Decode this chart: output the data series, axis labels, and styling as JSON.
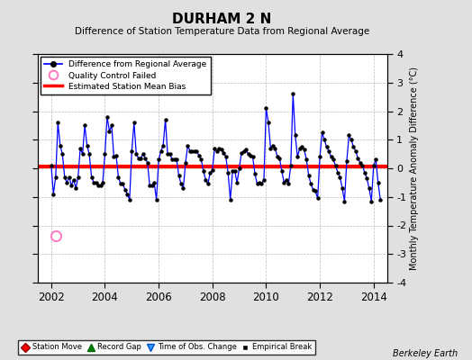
{
  "title": "DURHAM 2 N",
  "subtitle": "Difference of Station Temperature Data from Regional Average",
  "ylabel_right": "Monthly Temperature Anomaly Difference (°C)",
  "ylim": [
    -4,
    4
  ],
  "xlim": [
    2001.5,
    2014.5
  ],
  "xticks": [
    2002,
    2004,
    2006,
    2008,
    2010,
    2012,
    2014
  ],
  "yticks": [
    -4,
    -3,
    -2,
    -1,
    0,
    1,
    2,
    3,
    4
  ],
  "bias_line_y": 0.05,
  "background_color": "#e0e0e0",
  "plot_bg_color": "#ffffff",
  "line_color": "#0000ff",
  "bias_color": "#ff0000",
  "qc_failed_x": 2002.17,
  "qc_failed_y": -2.35,
  "watermark": "Berkeley Earth",
  "time_series": {
    "x": [
      2002.0,
      2002.083,
      2002.167,
      2002.25,
      2002.333,
      2002.417,
      2002.5,
      2002.583,
      2002.667,
      2002.75,
      2002.833,
      2002.917,
      2003.0,
      2003.083,
      2003.167,
      2003.25,
      2003.333,
      2003.417,
      2003.5,
      2003.583,
      2003.667,
      2003.75,
      2003.833,
      2003.917,
      2004.0,
      2004.083,
      2004.167,
      2004.25,
      2004.333,
      2004.417,
      2004.5,
      2004.583,
      2004.667,
      2004.75,
      2004.833,
      2004.917,
      2005.0,
      2005.083,
      2005.167,
      2005.25,
      2005.333,
      2005.417,
      2005.5,
      2005.583,
      2005.667,
      2005.75,
      2005.833,
      2005.917,
      2006.0,
      2006.083,
      2006.167,
      2006.25,
      2006.333,
      2006.417,
      2006.5,
      2006.583,
      2006.667,
      2006.75,
      2006.833,
      2006.917,
      2007.0,
      2007.083,
      2007.167,
      2007.25,
      2007.333,
      2007.417,
      2007.5,
      2007.583,
      2007.667,
      2007.75,
      2007.833,
      2007.917,
      2008.0,
      2008.083,
      2008.167,
      2008.25,
      2008.333,
      2008.417,
      2008.5,
      2008.583,
      2008.667,
      2008.75,
      2008.833,
      2008.917,
      2009.0,
      2009.083,
      2009.167,
      2009.25,
      2009.333,
      2009.417,
      2009.5,
      2009.583,
      2009.667,
      2009.75,
      2009.833,
      2009.917,
      2010.0,
      2010.083,
      2010.167,
      2010.25,
      2010.333,
      2010.417,
      2010.5,
      2010.583,
      2010.667,
      2010.75,
      2010.833,
      2010.917,
      2011.0,
      2011.083,
      2011.167,
      2011.25,
      2011.333,
      2011.417,
      2011.5,
      2011.583,
      2011.667,
      2011.75,
      2011.833,
      2011.917,
      2012.0,
      2012.083,
      2012.167,
      2012.25,
      2012.333,
      2012.417,
      2012.5,
      2012.583,
      2012.667,
      2012.75,
      2012.833,
      2012.917,
      2013.0,
      2013.083,
      2013.167,
      2013.25,
      2013.333,
      2013.417,
      2013.5,
      2013.583,
      2013.667,
      2013.75,
      2013.833,
      2013.917,
      2014.0,
      2014.083,
      2014.167,
      2014.25
    ],
    "y": [
      0.1,
      -0.9,
      -0.3,
      1.6,
      0.8,
      0.5,
      -0.3,
      -0.5,
      -0.3,
      -0.6,
      -0.4,
      -0.7,
      -0.3,
      0.7,
      0.5,
      1.5,
      0.8,
      0.5,
      -0.3,
      -0.5,
      -0.5,
      -0.6,
      -0.6,
      -0.5,
      0.5,
      1.8,
      1.3,
      1.5,
      0.4,
      0.45,
      -0.3,
      -0.55,
      -0.55,
      -0.75,
      -0.9,
      -1.1,
      0.6,
      1.6,
      0.5,
      0.35,
      0.35,
      0.5,
      0.35,
      0.2,
      -0.6,
      -0.6,
      -0.5,
      -1.1,
      0.3,
      0.6,
      0.8,
      1.7,
      0.5,
      0.5,
      0.3,
      0.3,
      0.3,
      -0.25,
      -0.55,
      -0.7,
      0.2,
      0.8,
      0.6,
      0.6,
      0.6,
      0.6,
      0.45,
      0.3,
      -0.1,
      -0.4,
      -0.55,
      -0.15,
      -0.05,
      0.7,
      0.6,
      0.7,
      0.65,
      0.55,
      0.4,
      -0.15,
      -1.1,
      -0.1,
      -0.1,
      -0.5,
      0.0,
      0.55,
      0.6,
      0.65,
      0.5,
      0.45,
      0.4,
      -0.2,
      -0.55,
      -0.5,
      -0.55,
      -0.4,
      2.1,
      1.6,
      0.7,
      0.8,
      0.7,
      0.4,
      0.35,
      -0.1,
      -0.5,
      -0.4,
      -0.55,
      0.1,
      2.6,
      1.15,
      0.4,
      0.7,
      0.75,
      0.65,
      0.3,
      -0.25,
      -0.55,
      -0.75,
      -0.8,
      -1.05,
      0.4,
      1.25,
      1.0,
      0.75,
      0.6,
      0.4,
      0.3,
      0.1,
      -0.15,
      -0.3,
      -0.7,
      -1.15,
      0.25,
      1.15,
      1.0,
      0.75,
      0.6,
      0.35,
      0.2,
      0.1,
      -0.15,
      -0.35,
      -0.7,
      -1.15,
      0.1,
      0.3,
      -0.5,
      -1.1
    ]
  }
}
